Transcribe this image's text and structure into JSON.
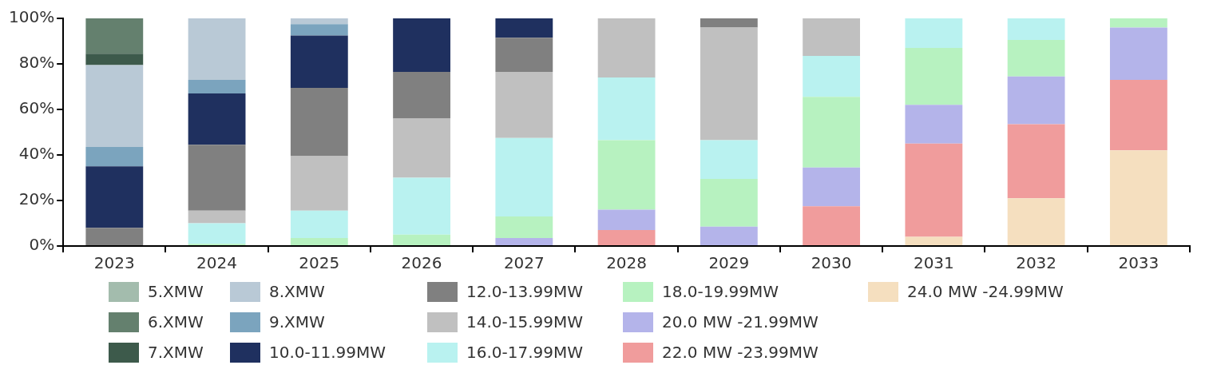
{
  "chart_data": {
    "type": "bar",
    "stacked": true,
    "legend": "bottom",
    "grid": false,
    "categories": [
      "2023",
      "2024",
      "2025",
      "2026",
      "2027",
      "2028",
      "2029",
      "2030",
      "2031",
      "2032",
      "2033"
    ],
    "ylim": [
      0,
      100
    ],
    "yticks": [
      {
        "value": 0,
        "label": "0%"
      },
      {
        "value": 20,
        "label": "20%"
      },
      {
        "value": 40,
        "label": "40%"
      },
      {
        "value": 60,
        "label": "60%"
      },
      {
        "value": 80,
        "label": "80%"
      },
      {
        "value": 100,
        "label": "100%"
      }
    ],
    "series": [
      {
        "name": "24.0 MW -24.99MW",
        "color": "#f5dfbf",
        "values": [
          null,
          null,
          null,
          null,
          null,
          null,
          null,
          null,
          4,
          21,
          42
        ]
      },
      {
        "name": "22.0 MW -23.99MW",
        "color": "#f09c9c",
        "values": [
          null,
          null,
          null,
          null,
          null,
          7,
          null,
          17.5,
          41,
          32.5,
          31
        ]
      },
      {
        "name": "20.0 MW -21.99MW",
        "color": "#b4b4ea",
        "values": [
          null,
          null,
          null,
          null,
          3.5,
          9,
          8.5,
          17,
          17,
          21,
          23
        ]
      },
      {
        "name": "18.0-19.99MW",
        "color": "#b7f2c0",
        "values": [
          null,
          1,
          3.5,
          5,
          9.5,
          30.5,
          21,
          31,
          25,
          16,
          4
        ]
      },
      {
        "name": "16.0-17.99MW",
        "color": "#b9f2f0",
        "values": [
          null,
          9,
          12,
          25,
          34.5,
          27.5,
          17,
          18,
          13,
          9.5,
          null
        ]
      },
      {
        "name": "14.0-15.99MW",
        "color": "#c0c0c0",
        "values": [
          null,
          5.5,
          24,
          26,
          29,
          26,
          49.5,
          16.5,
          null,
          null,
          null
        ]
      },
      {
        "name": "12.0-13.99MW",
        "color": "#808080",
        "values": [
          8,
          29,
          30,
          20.5,
          15,
          null,
          4,
          null,
          null,
          null,
          null
        ]
      },
      {
        "name": "10.0-11.99MW",
        "color": "#1f305f",
        "values": [
          27,
          22.5,
          23,
          23.5,
          8.5,
          null,
          null,
          null,
          null,
          null,
          null
        ]
      },
      {
        "name": "9.XMW",
        "color": "#7ba4be",
        "values": [
          8.5,
          6,
          5,
          null,
          null,
          null,
          null,
          null,
          null,
          null,
          null
        ]
      },
      {
        "name": "8.XMW",
        "color": "#b9c9d6",
        "values": [
          36,
          27,
          2.5,
          null,
          null,
          null,
          null,
          null,
          null,
          null,
          null
        ]
      },
      {
        "name": "7.XMW",
        "color": "#3d5a4b",
        "values": [
          5,
          null,
          null,
          null,
          null,
          null,
          null,
          null,
          null,
          null,
          null
        ]
      },
      {
        "name": "6.XMW",
        "color": "#64806e",
        "values": [
          15.5,
          null,
          null,
          null,
          null,
          null,
          null,
          null,
          null,
          null,
          null
        ]
      },
      {
        "name": "5.XMW",
        "color": "#a3bcad",
        "values": [
          null,
          null,
          null,
          null,
          null,
          null,
          null,
          null,
          null,
          null,
          null
        ]
      }
    ]
  }
}
